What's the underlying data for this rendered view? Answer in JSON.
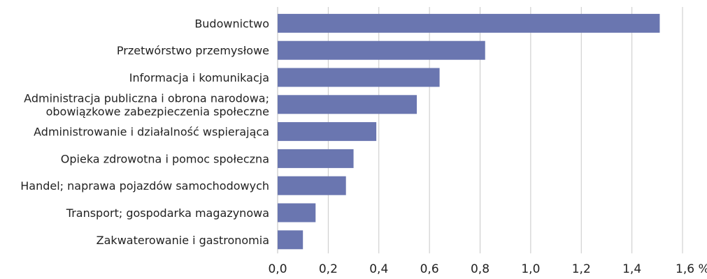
{
  "chart_data": {
    "type": "bar",
    "orientation": "horizontal",
    "categories": [
      [
        "Budownictwo"
      ],
      [
        "Przetwórstwo przemysłowe"
      ],
      [
        "Informacja i komunikacja"
      ],
      [
        "Administracja publiczna i obrona narodowa;",
        "obowiązkowe zabezpieczenia społeczne"
      ],
      [
        "Administrowanie i działalność wspierająca"
      ],
      [
        "Opieka zdrowotna i pomoc społeczna"
      ],
      [
        "Handel; naprawa pojazdów samochodowych"
      ],
      [
        "Transport; gospodarka magazynowa"
      ],
      [
        "Zakwaterowanie i gastronomia"
      ]
    ],
    "values": [
      1.51,
      0.82,
      0.64,
      0.55,
      0.39,
      0.3,
      0.27,
      0.15,
      0.1
    ],
    "xlim": [
      0,
      1.6
    ],
    "xticks": [
      "0,0",
      "0,2",
      "0,4",
      "0,6",
      "0,8",
      "1,0",
      "1,2",
      "1,4",
      "1,6 %"
    ],
    "grid": "vertical",
    "bar_color": "#6a76b0",
    "title": "",
    "xlabel": "",
    "ylabel": ""
  }
}
